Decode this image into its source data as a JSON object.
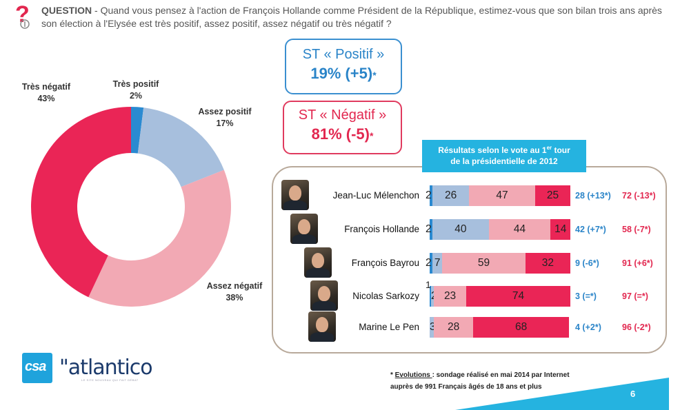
{
  "question": {
    "label": "QUESTION",
    "text": " - Quand vous pensez à l'action de François Hollande comme Président de la République, estimez-vous que son bilan trois ans après son élection à l'Elysée est très positif, assez positif, assez négatif ou très négatif ?"
  },
  "st_positif": {
    "title": "ST « Positif »",
    "value": "19% (+5)",
    "star": "*"
  },
  "st_negatif": {
    "title": "ST « Négatif »",
    "value": "81% (-5)",
    "star": "*"
  },
  "vote_header": {
    "line1_pre": "Résultats selon le vote au 1",
    "sup": "er",
    "line1_post": " tour",
    "line2": "de la présidentielle de 2012"
  },
  "colors": {
    "tres_positif": "#2a8ad1",
    "assez_positif": "#a7bfdd",
    "assez_negatif": "#f2a9b4",
    "tres_negatif": "#ea2556",
    "positive_text": "#2a84c8",
    "negative_text": "#e2274f"
  },
  "chart_data": [
    {
      "type": "pie",
      "variant": "donut",
      "slices": [
        {
          "label": "Très positif",
          "value": 2,
          "display": "2%"
        },
        {
          "label": "Assez positif",
          "value": 17,
          "display": "17%"
        },
        {
          "label": "Assez négatif",
          "value": 38,
          "display": "38%"
        },
        {
          "label": "Très négatif",
          "value": 43,
          "display": "43%"
        }
      ]
    },
    {
      "type": "bar",
      "orientation": "horizontal",
      "stacked": true,
      "categories": [
        "Jean-Luc Mélenchon",
        "François Hollande",
        "François Bayrou",
        "Nicolas Sarkozy",
        "Marine Le Pen"
      ],
      "series": [
        {
          "name": "Très positif",
          "values": [
            2,
            2,
            2,
            1,
            0
          ]
        },
        {
          "name": "Assez positif",
          "values": [
            26,
            40,
            7,
            2,
            3
          ]
        },
        {
          "name": "Assez négatif",
          "values": [
            47,
            44,
            59,
            23,
            28
          ]
        },
        {
          "name": "Très négatif",
          "values": [
            25,
            14,
            32,
            74,
            68
          ]
        }
      ],
      "st_positif": [
        "28 (+13*)",
        "42 (+7*)",
        "9 (-6*)",
        "3 (=*)",
        "4 (+2*)"
      ],
      "st_negatif": [
        "72 (-13*)",
        "58 (-7*)",
        "91 (+6*)",
        "97 (=*)",
        "96 (-2*)"
      ]
    }
  ],
  "footnote": {
    "prefix": "* ",
    "underlined": "Evolutions ",
    "line1": ": sondage réalisé en mai 2014 par Internet",
    "line2": "auprès de 991 Français âgés de 18 ans et plus"
  },
  "logos": {
    "csa": "csa",
    "atlantico": "\"atlantico",
    "atlantico_tagline": "LE SITE NOUVEAU QUI FAIT DÉBAT"
  },
  "page_number": "6"
}
